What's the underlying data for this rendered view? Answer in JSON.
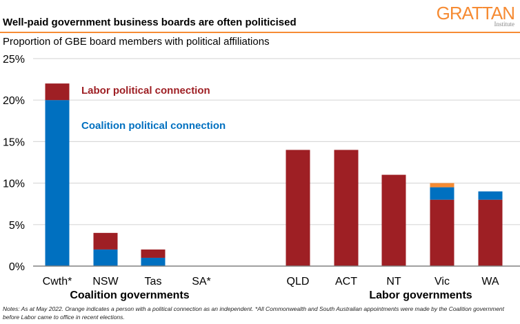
{
  "header": {
    "title": "Well-paid government business boards are often politicised",
    "subtitle": "Proportion of GBE board members with political affiliations",
    "logo_main": "GRATTAN",
    "logo_sub": "Institute"
  },
  "notes": "Notes: As at May 2022. Orange indicates a person with a political connection as an independent. *All Commonwealth and South Australian appointments were made by the Coalition government before Labor came to office in recent elections.",
  "colors": {
    "labor": "#9E1F24",
    "coalition": "#0070C0",
    "independent": "#F68B33",
    "accent": "#F68B33"
  },
  "chart_data": {
    "type": "bar",
    "stacked": true,
    "title": "Well-paid government business boards are often politicised",
    "ylabel": "Proportion of GBE board members with political affiliations",
    "ylim": [
      0,
      25
    ],
    "yticks": [
      "0%",
      "5%",
      "10%",
      "15%",
      "20%",
      "25%"
    ],
    "ytick_values": [
      0,
      5,
      10,
      15,
      20,
      25
    ],
    "grid": true,
    "categories": [
      "Cwth*",
      "NSW",
      "Tas",
      "SA*",
      "QLD",
      "ACT",
      "NT",
      "Vic",
      "WA"
    ],
    "groups": [
      {
        "label": "Coalition governments",
        "categories": [
          "Cwth*",
          "NSW",
          "Tas",
          "SA*"
        ]
      },
      {
        "label": "Labor governments",
        "categories": [
          "QLD",
          "ACT",
          "NT",
          "Vic",
          "WA"
        ]
      }
    ],
    "series": [
      {
        "name": "Coalition political connection",
        "color": "#0070C0",
        "values": [
          20,
          2,
          1,
          0,
          0,
          0,
          0,
          1.5,
          1
        ]
      },
      {
        "name": "Labor political connection",
        "color": "#9E1F24",
        "values": [
          2,
          2,
          1,
          0,
          14,
          14,
          11,
          8,
          8
        ]
      },
      {
        "name": "Independent",
        "color": "#F68B33",
        "values": [
          0,
          0,
          0,
          0,
          0,
          0,
          0,
          0.5,
          0
        ]
      }
    ],
    "legend": [
      {
        "label": "Labor political connection",
        "color": "#9E1F24"
      },
      {
        "label": "Coalition political connection",
        "color": "#0070C0"
      }
    ],
    "legend_placement": "inline, top-left of plot"
  }
}
